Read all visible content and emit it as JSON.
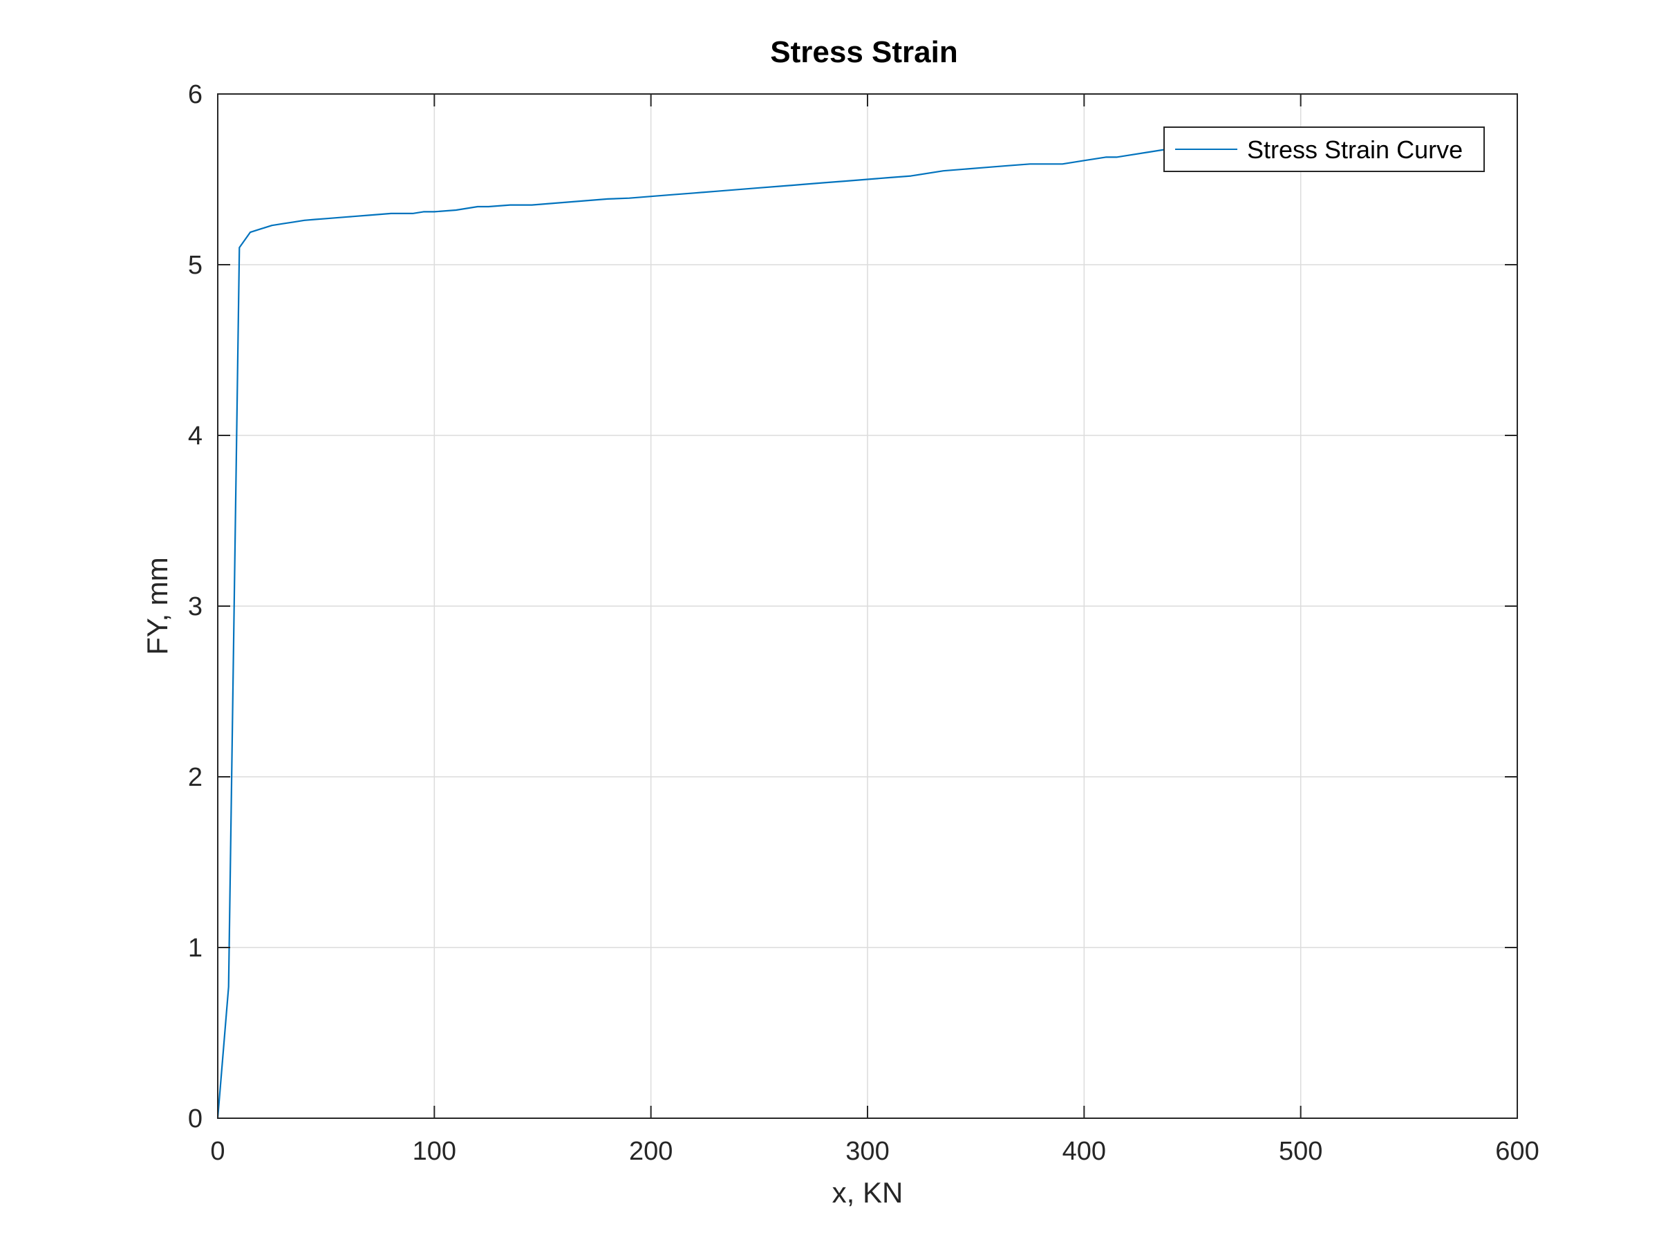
{
  "chart_data": {
    "type": "line",
    "title": "Stress Strain",
    "xlabel": "x, KN",
    "ylabel": "FY, mm",
    "xlim": [
      0,
      600
    ],
    "ylim": [
      0,
      6
    ],
    "xticks": [
      0,
      100,
      200,
      300,
      400,
      500,
      600
    ],
    "yticks": [
      0,
      1,
      2,
      3,
      4,
      5,
      6
    ],
    "xtick_labels": [
      "0",
      "100",
      "200",
      "300",
      "400",
      "500",
      "600"
    ],
    "ytick_labels": [
      "0",
      "1",
      "2",
      "3",
      "4",
      "5",
      "6"
    ],
    "grid": true,
    "legend_position": "top-right",
    "series": [
      {
        "name": "Stress Strain Curve",
        "color": "#0072BD",
        "x": [
          0,
          5,
          10,
          15,
          20,
          25,
          30,
          35,
          40,
          45,
          50,
          60,
          70,
          80,
          90,
          95,
          100,
          110,
          120,
          125,
          135,
          145,
          155,
          165,
          175,
          180,
          190,
          200,
          210,
          220,
          230,
          240,
          250,
          260,
          270,
          280,
          290,
          300,
          310,
          320,
          335,
          345,
          355,
          365,
          375,
          380,
          390,
          400,
          410,
          415,
          420,
          430,
          440,
          450,
          460,
          470,
          480,
          490,
          500,
          510,
          520,
          530,
          540
        ],
        "y": [
          0,
          0.77,
          5.1,
          5.19,
          5.21,
          5.23,
          5.24,
          5.25,
          5.26,
          5.265,
          5.27,
          5.28,
          5.29,
          5.3,
          5.3,
          5.31,
          5.31,
          5.32,
          5.34,
          5.34,
          5.35,
          5.35,
          5.36,
          5.37,
          5.38,
          5.385,
          5.39,
          5.4,
          5.41,
          5.42,
          5.43,
          5.44,
          5.45,
          5.46,
          5.47,
          5.48,
          5.49,
          5.5,
          5.51,
          5.52,
          5.55,
          5.56,
          5.57,
          5.58,
          5.59,
          5.59,
          5.59,
          5.61,
          5.63,
          5.63,
          5.64,
          5.66,
          5.68,
          5.7,
          5.72,
          5.74,
          5.76,
          5.78,
          5.8,
          5.8,
          5.8,
          5.8,
          5.8
        ]
      }
    ]
  }
}
